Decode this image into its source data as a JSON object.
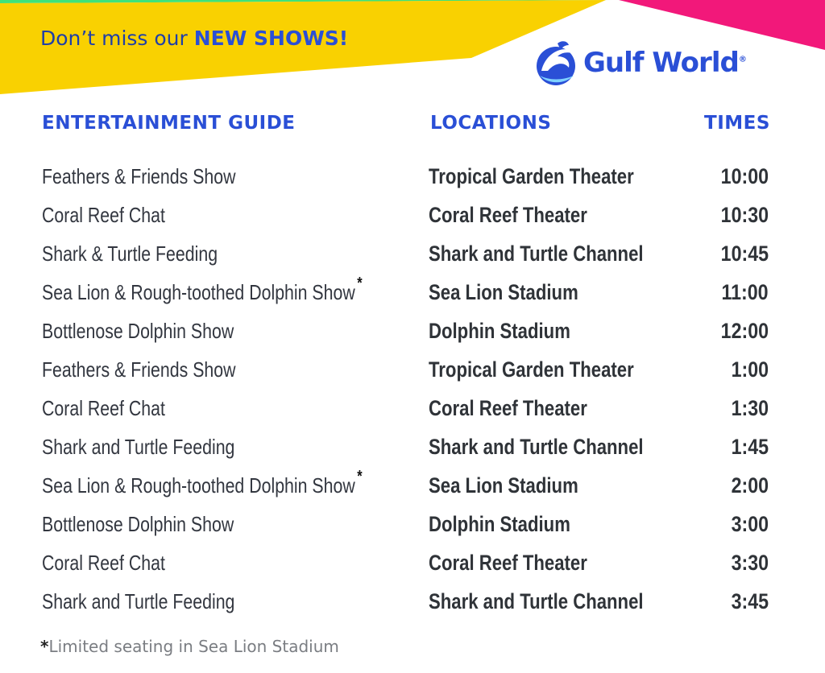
{
  "banner": {
    "promo_prefix": "Don’t miss our ",
    "promo_highlight": "NEW SHOWS!",
    "colors": {
      "yellow": "#f9d101",
      "pink": "#f2187a",
      "green": "#3fe27a",
      "blue_text": "#2a4fd6"
    }
  },
  "logo": {
    "name": "Gulf World",
    "registered_mark": "®",
    "icon": "dolphin-icon"
  },
  "headers": {
    "guide": "ENTERTAINMENT GUIDE",
    "locations": "LOCATIONS",
    "times": "TIMES"
  },
  "schedule": [
    {
      "show": "Feathers & Friends Show",
      "limited": false,
      "location": "Tropical Garden Theater",
      "time": "10:00"
    },
    {
      "show": "Coral Reef Chat",
      "limited": false,
      "location": "Coral Reef Theater",
      "time": "10:30"
    },
    {
      "show": "Shark & Turtle Feeding",
      "limited": false,
      "location": "Shark and Turtle Channel",
      "time": "10:45"
    },
    {
      "show": "Sea Lion & Rough-toothed Dolphin Show",
      "limited": true,
      "location": "Sea Lion Stadium",
      "time": "11:00"
    },
    {
      "show": "Bottlenose Dolphin Show",
      "limited": false,
      "location": "Dolphin Stadium",
      "time": "12:00"
    },
    {
      "show": "Feathers & Friends Show",
      "limited": false,
      "location": "Tropical Garden Theater",
      "time": "1:00"
    },
    {
      "show": "Coral Reef Chat",
      "limited": false,
      "location": "Coral Reef Theater",
      "time": "1:30"
    },
    {
      "show": "Shark and Turtle Feeding",
      "limited": false,
      "location": "Shark and Turtle Channel",
      "time": "1:45"
    },
    {
      "show": "Sea Lion & Rough-toothed Dolphin Show",
      "limited": true,
      "location": "Sea Lion Stadium",
      "time": "2:00"
    },
    {
      "show": "Bottlenose Dolphin Show",
      "limited": false,
      "location": "Dolphin Stadium",
      "time": "3:00"
    },
    {
      "show": "Coral Reef Chat",
      "limited": false,
      "location": "Coral Reef Theater",
      "time": "3:30"
    },
    {
      "show": "Shark and Turtle Feeding",
      "limited": false,
      "location": "Shark and Turtle Channel",
      "time": "3:45"
    }
  ],
  "asterisk": "*",
  "footnote": {
    "marker": "*",
    "text": "Limited seating in Sea Lion Stadium"
  }
}
